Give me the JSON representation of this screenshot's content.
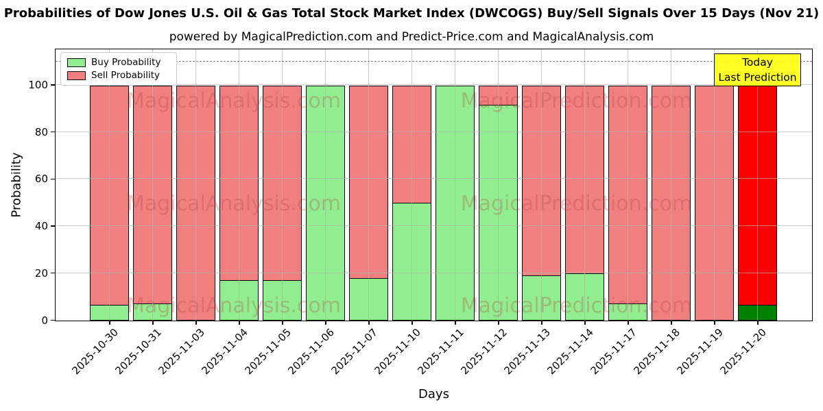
{
  "chart_data": {
    "type": "bar",
    "stacked": true,
    "title": "Probabilities of Dow Jones U.S. Oil & Gas Total Stock Market Index (DWCOGS) Buy/Sell Signals Over 15 Days (Nov 21)",
    "subtitle": "powered by MagicalPrediction.com and Predict-Price.com and MagicalAnalysis.com",
    "xlabel": "Days",
    "ylabel": "Probability",
    "categories": [
      "2025-10-30",
      "2025-10-31",
      "2025-11-03",
      "2025-11-04",
      "2025-11-05",
      "2025-11-06",
      "2025-11-07",
      "2025-11-10",
      "2025-11-11",
      "2025-11-12",
      "2025-11-13",
      "2025-11-14",
      "2025-11-17",
      "2025-11-18",
      "2025-11-19",
      "2025-11-20"
    ],
    "series": [
      {
        "name": "Buy Probability",
        "color": "#90EE90",
        "values": [
          6.5,
          7,
          0,
          17,
          17,
          100,
          18,
          50,
          100,
          92,
          19,
          20,
          7,
          0,
          0,
          6.5
        ]
      },
      {
        "name": "Sell Probability",
        "color": "#F08080",
        "values": [
          93.5,
          93,
          100,
          83,
          83,
          0,
          82,
          50,
          0,
          8,
          81,
          80,
          93,
          100,
          100,
          93.5
        ]
      }
    ],
    "today_bar": {
      "category": "2025-11-20",
      "buy_color": "#008000",
      "sell_color": "#FF0000"
    },
    "yticks": [
      0,
      20,
      40,
      60,
      80,
      100
    ],
    "ylim": [
      0,
      115
    ],
    "hline": {
      "y": 110,
      "style": "dashed",
      "color": "#7f7f7f"
    },
    "grid": true,
    "legend_position": "upper left",
    "bar_edge_color": "#000000"
  },
  "legend": {
    "items": [
      {
        "label": "Buy Probability",
        "color": "#90EE90"
      },
      {
        "label": "Sell Probability",
        "color": "#F08080"
      }
    ]
  },
  "annotation": {
    "line1": "Today",
    "line2": "Last Prediction",
    "bg": "#FFFF00"
  },
  "watermark": {
    "left_text": "MagicalAnalysis.com",
    "right_text": "MagicalPrediction.com",
    "rows": 3
  }
}
